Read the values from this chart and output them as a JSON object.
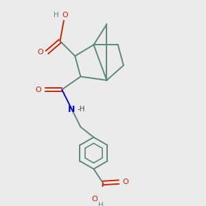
{
  "background_color": "#ebebeb",
  "bond_color": "#5a8878",
  "oxygen_color": "#cc2200",
  "nitrogen_color": "#0000cc",
  "lw": 1.4,
  "figsize": [
    3.0,
    3.0
  ],
  "dpi": 100,
  "xlim": [
    0,
    10
  ],
  "ylim": [
    0,
    10
  ]
}
